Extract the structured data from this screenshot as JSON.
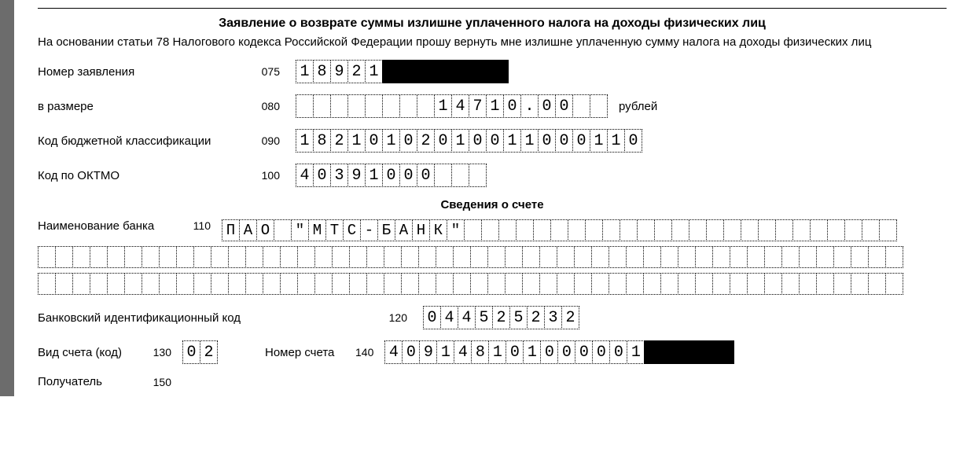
{
  "title": "Заявление о возврате суммы излишне уплаченного налога на доходы физических лиц",
  "intro": "На основании статьи 78 Налогового кодекса Российской Федерации прошу вернуть мне излишне уплаченную сумму налога на доходы физических лиц",
  "rows": {
    "app_number": {
      "label": "Номер заявления",
      "code": "075",
      "total_cells": 12,
      "value": "18921",
      "redact_from": 5,
      "redact_to": 12
    },
    "amount": {
      "label": "в размере",
      "code": "080",
      "total_cells": 18,
      "value": "        14710.00",
      "suffix": "рублей"
    },
    "kbk": {
      "label": "Код бюджетной классификации",
      "code": "090",
      "total_cells": 20,
      "value": "18210102010011000110"
    },
    "oktmo": {
      "label": "Код по ОКТМО",
      "code": "100",
      "total_cells": 11,
      "value": "40391000"
    }
  },
  "account_section_title": "Сведения о счете",
  "bank": {
    "label": "Наименование банка",
    "code": "110",
    "line_cells": 50,
    "first_line_cells": 39,
    "lines": [
      "ПАО \"МТС-БАНК\"",
      "",
      ""
    ]
  },
  "bik": {
    "label": "Банковский идентификационный код",
    "code": "120",
    "total_cells": 9,
    "value": "044525232"
  },
  "acct_type": {
    "label": "Вид счета (код)",
    "code": "130",
    "total_cells": 2,
    "value": "02"
  },
  "acct_num": {
    "label": "Номер счета",
    "code": "140",
    "total_cells": 20,
    "value": "409148101000001",
    "redact_from": 15,
    "redact_to": 20
  },
  "recipient": {
    "label": "Получатель",
    "code": "150"
  },
  "layout": {
    "label_col_width": 260,
    "code_col_width": 48,
    "cells_left_gap": 20
  }
}
